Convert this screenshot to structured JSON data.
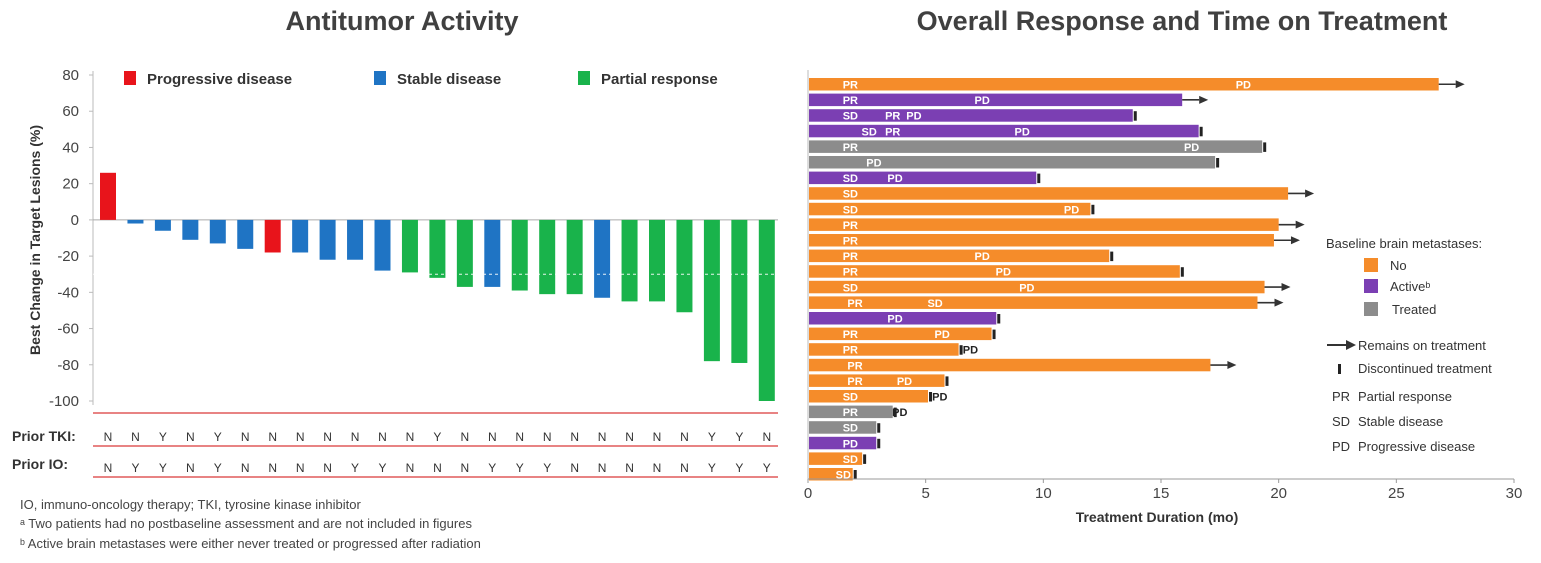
{
  "left_title": "Antitumor Activity",
  "right_title": "Overall Response and Time on Treatment",
  "colors": {
    "progressive": "#e8141b",
    "stable": "#1f74c4",
    "partial": "#19b34b",
    "no": "#f58c2a",
    "active": "#7b3fb3",
    "treated": "#8c8c8c",
    "refline": "#e05a5a"
  },
  "legend_left": [
    {
      "label": "Progressive disease",
      "color": "#e8141b"
    },
    {
      "label": "Stable disease",
      "color": "#1f74c4"
    },
    {
      "label": "Partial response",
      "color": "#19b34b"
    }
  ],
  "prior_tki_label": "Prior TKI:",
  "prior_io_label": "Prior IO:",
  "footnotes": [
    "IO, immuno-oncology therapy; TKI, tyrosine kinase inhibitor",
    "ᵃ Two patients had no postbaseline assessment and are not included in figures",
    "ᵇ Active brain metastases were either never treated or progressed after radiation"
  ],
  "right_legend": {
    "title": "Baseline brain metastases:",
    "items": [
      {
        "label": "No",
        "color": "#f58c2a"
      },
      {
        "label": "Activeᵇ",
        "color": "#7b3fb3"
      },
      {
        "label": "Treated",
        "color": "#8c8c8c"
      }
    ],
    "remains": "Remains on treatment",
    "discontinued": "Discontinued treatment",
    "abbrevs": [
      {
        "abbr": "PR",
        "text": "Partial response"
      },
      {
        "abbr": "SD",
        "text": "Stable disease"
      },
      {
        "abbr": "PD",
        "text": "Progressive disease"
      }
    ]
  },
  "chart_data": [
    {
      "type": "bar",
      "title": "Antitumor Activity",
      "ylabel": "Best Change in Target Lesions (%)",
      "ylim": [
        -100,
        80
      ],
      "yticks": [
        80,
        60,
        40,
        20,
        0,
        -20,
        -40,
        -60,
        -80,
        -100
      ],
      "values": [
        26,
        -2,
        -6,
        -11,
        -13,
        -16,
        -18,
        -18,
        -22,
        -22,
        -28,
        -29,
        -32,
        -37,
        -37,
        -39,
        -41,
        -41,
        -43,
        -45,
        -45,
        -51,
        -78,
        -79,
        -100
      ],
      "response": [
        "Progressive disease",
        "Stable disease",
        "Stable disease",
        "Stable disease",
        "Stable disease",
        "Stable disease",
        "Progressive disease",
        "Stable disease",
        "Stable disease",
        "Stable disease",
        "Stable disease",
        "Partial response",
        "Partial response",
        "Partial response",
        "Stable disease",
        "Partial response",
        "Partial response",
        "Partial response",
        "Stable disease",
        "Partial response",
        "Partial response",
        "Partial response",
        "Partial response",
        "Partial response",
        "Partial response"
      ],
      "reference_line": -30,
      "prior_tki": [
        "N",
        "N",
        "Y",
        "N",
        "Y",
        "N",
        "N",
        "N",
        "N",
        "N",
        "N",
        "N",
        "Y",
        "N",
        "N",
        "N",
        "N",
        "N",
        "N",
        "N",
        "N",
        "N",
        "Y",
        "Y",
        "N"
      ],
      "prior_io": [
        "N",
        "Y",
        "Y",
        "N",
        "Y",
        "N",
        "N",
        "N",
        "N",
        "Y",
        "Y",
        "N",
        "N",
        "N",
        "Y",
        "Y",
        "Y",
        "N",
        "N",
        "N",
        "N",
        "N",
        "Y",
        "Y",
        "Y"
      ],
      "legend": [
        "Progressive disease",
        "Stable disease",
        "Partial response"
      ],
      "legend_position": "top"
    },
    {
      "type": "bar",
      "orientation": "horizontal",
      "title": "Overall Response and Time on Treatment",
      "xlabel": "Treatment Duration (mo)",
      "xlim": [
        0,
        30
      ],
      "xticks": [
        0,
        5,
        10,
        15,
        20,
        25,
        30
      ],
      "legend_position": "right",
      "bars": [
        {
          "duration": 26.8,
          "brain_mets": "No",
          "end": "Remains on treatment",
          "labels": [
            {
              "t": "PR",
              "x": 1.8
            },
            {
              "t": "PD",
              "x": 18.5
            }
          ]
        },
        {
          "duration": 15.9,
          "brain_mets": "Active",
          "end": "Remains on treatment",
          "labels": [
            {
              "t": "PR",
              "x": 1.8
            },
            {
              "t": "PD",
              "x": 7.4
            }
          ]
        },
        {
          "duration": 13.8,
          "brain_mets": "Active",
          "end": "Discontinued treatment",
          "labels": [
            {
              "t": "SD",
              "x": 1.8
            },
            {
              "t": "PR",
              "x": 3.6
            },
            {
              "t": "PD",
              "x": 4.5
            }
          ]
        },
        {
          "duration": 16.6,
          "brain_mets": "Active",
          "end": "Discontinued treatment",
          "labels": [
            {
              "t": "SD",
              "x": 2.6
            },
            {
              "t": "PR",
              "x": 3.6
            },
            {
              "t": "PD",
              "x": 9.1
            }
          ]
        },
        {
          "duration": 19.3,
          "brain_mets": "Treated",
          "end": "Discontinued treatment",
          "labels": [
            {
              "t": "PR",
              "x": 1.8
            },
            {
              "t": "PD",
              "x": 16.3
            }
          ]
        },
        {
          "duration": 17.3,
          "brain_mets": "Treated",
          "end": "Discontinued treatment",
          "labels": [
            {
              "t": "PD",
              "x": 2.8
            }
          ]
        },
        {
          "duration": 9.7,
          "brain_mets": "Active",
          "end": "Discontinued treatment",
          "labels": [
            {
              "t": "SD",
              "x": 1.8
            },
            {
              "t": "PD",
              "x": 3.7
            }
          ]
        },
        {
          "duration": 20.4,
          "brain_mets": "No",
          "end": "Remains on treatment",
          "labels": [
            {
              "t": "SD",
              "x": 1.8
            }
          ]
        },
        {
          "duration": 12.0,
          "brain_mets": "No",
          "end": "Discontinued treatment",
          "labels": [
            {
              "t": "SD",
              "x": 1.8
            },
            {
              "t": "PD",
              "x": 11.2
            }
          ]
        },
        {
          "duration": 20.0,
          "brain_mets": "No",
          "end": "Remains on treatment",
          "labels": [
            {
              "t": "PR",
              "x": 1.8
            }
          ]
        },
        {
          "duration": 19.8,
          "brain_mets": "No",
          "end": "Remains on treatment",
          "labels": [
            {
              "t": "PR",
              "x": 1.8
            }
          ]
        },
        {
          "duration": 12.8,
          "brain_mets": "No",
          "end": "Discontinued treatment",
          "labels": [
            {
              "t": "PR",
              "x": 1.8
            },
            {
              "t": "PD",
              "x": 7.4
            }
          ]
        },
        {
          "duration": 15.8,
          "brain_mets": "No",
          "end": "Discontinued treatment",
          "labels": [
            {
              "t": "PR",
              "x": 1.8
            },
            {
              "t": "PD",
              "x": 8.3
            }
          ]
        },
        {
          "duration": 19.4,
          "brain_mets": "No",
          "end": "Remains on treatment",
          "labels": [
            {
              "t": "SD",
              "x": 1.8
            },
            {
              "t": "PD",
              "x": 9.3
            }
          ]
        },
        {
          "duration": 19.1,
          "brain_mets": "No",
          "end": "Remains on treatment",
          "labels": [
            {
              "t": "PR",
              "x": 2.0
            },
            {
              "t": "SD",
              "x": 5.4
            }
          ]
        },
        {
          "duration": 8.0,
          "brain_mets": "Active",
          "end": "Discontinued treatment",
          "labels": [
            {
              "t": "PD",
              "x": 3.7
            }
          ]
        },
        {
          "duration": 7.8,
          "brain_mets": "No",
          "end": "Discontinued treatment",
          "labels": [
            {
              "t": "PR",
              "x": 1.8
            },
            {
              "t": "PD",
              "x": 5.7
            }
          ]
        },
        {
          "duration": 6.4,
          "brain_mets": "No",
          "end": "Discontinued treatment",
          "labels": [
            {
              "t": "PR",
              "x": 1.8
            },
            {
              "t": "PD",
              "x": 6.9
            }
          ]
        },
        {
          "duration": 17.1,
          "brain_mets": "No",
          "end": "Remains on treatment",
          "labels": [
            {
              "t": "PR",
              "x": 2.0
            }
          ]
        },
        {
          "duration": 5.8,
          "brain_mets": "No",
          "end": "Discontinued treatment",
          "labels": [
            {
              "t": "PR",
              "x": 2.0
            },
            {
              "t": "PD",
              "x": 4.1
            }
          ]
        },
        {
          "duration": 5.1,
          "brain_mets": "No",
          "end": "Discontinued treatment",
          "labels": [
            {
              "t": "SD",
              "x": 1.8
            },
            {
              "t": "PD",
              "x": 5.6
            }
          ]
        },
        {
          "duration": 3.6,
          "brain_mets": "Treated",
          "end": "Discontinued treatment",
          "labels": [
            {
              "t": "PR",
              "x": 1.8
            },
            {
              "t": "PD",
              "x": 3.9
            }
          ]
        },
        {
          "duration": 2.9,
          "brain_mets": "Treated",
          "end": "Discontinued treatment",
          "labels": [
            {
              "t": "SD",
              "x": 1.8
            }
          ]
        },
        {
          "duration": 2.9,
          "brain_mets": "Active",
          "end": "Discontinued treatment",
          "labels": [
            {
              "t": "PD",
              "x": 1.8
            }
          ]
        },
        {
          "duration": 2.3,
          "brain_mets": "No",
          "end": "Discontinued treatment",
          "labels": [
            {
              "t": "SD",
              "x": 1.8
            }
          ]
        },
        {
          "duration": 1.9,
          "brain_mets": "No",
          "end": "Discontinued treatment",
          "labels": [
            {
              "t": "SD",
              "x": 1.5
            }
          ]
        }
      ]
    }
  ]
}
